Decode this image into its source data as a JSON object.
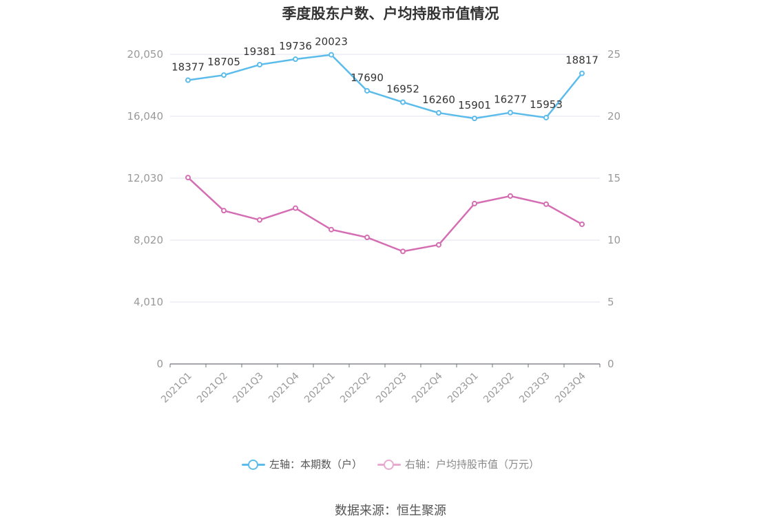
{
  "chart_data": {
    "type": "line",
    "title": "季度股东户数、户均持股市值情况",
    "categories": [
      "2021Q1",
      "2021Q2",
      "2021Q3",
      "2021Q4",
      "2022Q1",
      "2022Q2",
      "2022Q3",
      "2022Q4",
      "2023Q1",
      "2023Q2",
      "2023Q3",
      "2023Q4"
    ],
    "left_axis": {
      "ticks": [
        "0",
        "4,010",
        "8,020",
        "12,030",
        "16,040",
        "20,050"
      ],
      "ylim": [
        0,
        20050
      ]
    },
    "right_axis": {
      "ticks": [
        "0",
        "5",
        "10",
        "15",
        "20",
        "25"
      ],
      "ylim": [
        0,
        25
      ]
    },
    "series": [
      {
        "name": "左轴：本期数（户）",
        "axis": "left",
        "color": "#5bbcec",
        "values": [
          18377,
          18705,
          19381,
          19736,
          20023,
          17690,
          16952,
          16260,
          15901,
          16277,
          15953,
          18817
        ],
        "labels": [
          "18377",
          "18705",
          "19381",
          "19736",
          "20023",
          "17690",
          "16952",
          "16260",
          "15901",
          "16277",
          "15953",
          "18817"
        ]
      },
      {
        "name": "右轴：户均持股市值（万元）",
        "axis": "right",
        "color": "#d56db3",
        "values": [
          15.05,
          12.38,
          11.63,
          12.58,
          10.85,
          10.22,
          9.09,
          9.62,
          12.95,
          13.56,
          12.9,
          11.28
        ]
      }
    ],
    "grid": true,
    "legend_position": "bottom"
  },
  "source": "数据来源：恒生聚源"
}
